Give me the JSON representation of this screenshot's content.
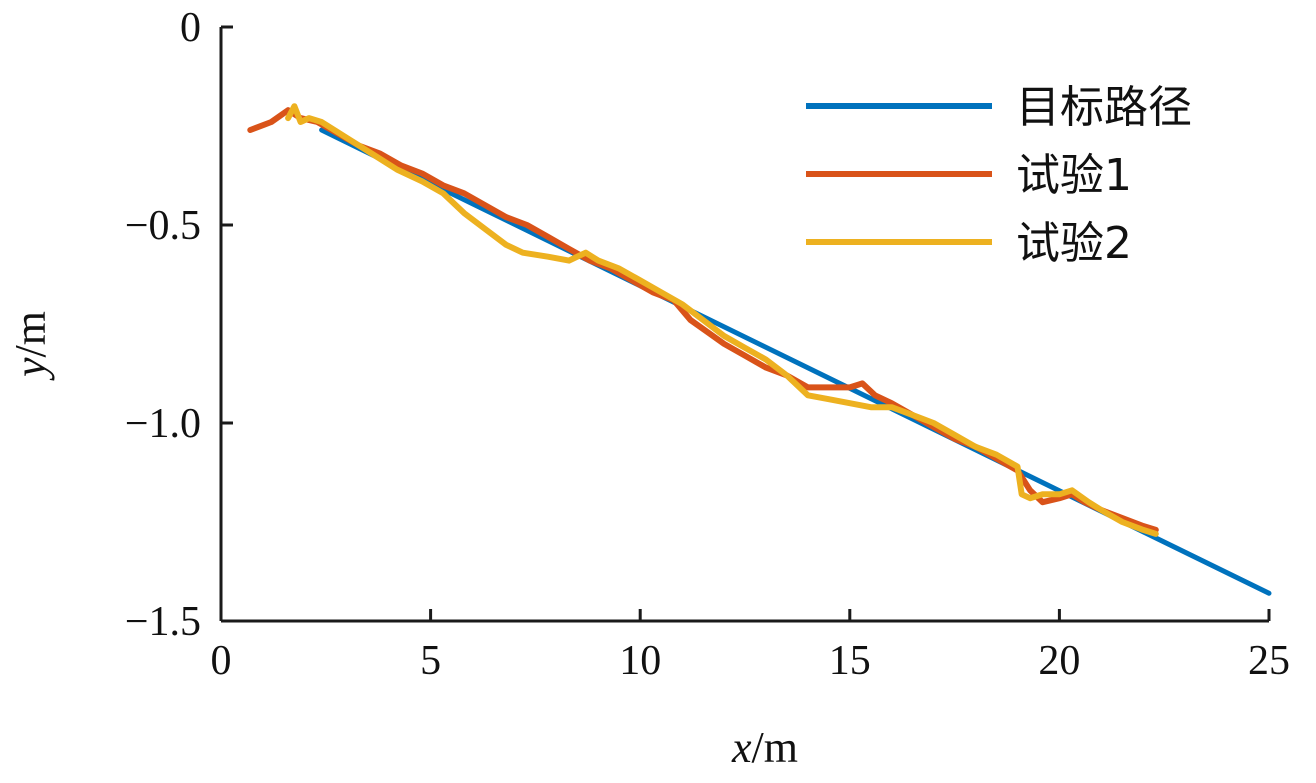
{
  "chart_data": {
    "type": "line",
    "xlabel_var": "x",
    "xlabel_unit": "/m",
    "ylabel_var": "y",
    "ylabel_unit": "/m",
    "xlim": [
      0,
      25
    ],
    "ylim": [
      -1.5,
      0
    ],
    "x_ticks": [
      0,
      5,
      10,
      15,
      20,
      25
    ],
    "x_tick_labels": [
      "0",
      "5",
      "10",
      "15",
      "20",
      "25"
    ],
    "y_ticks": [
      0,
      -0.5,
      -1.0,
      -1.5
    ],
    "y_tick_labels": [
      "0",
      "−0.5",
      "−1.0",
      "−1.5"
    ],
    "grid": false,
    "legend_position": "top-right",
    "series": [
      {
        "name": "目标路径",
        "color": "#0072BD",
        "x": [
          2.4,
          25.0
        ],
        "y": [
          -0.26,
          -1.43
        ]
      },
      {
        "name": "试验1",
        "color": "#D95319",
        "x": [
          0.7,
          1.2,
          1.6,
          1.9,
          2.3,
          2.8,
          3.3,
          3.8,
          4.3,
          4.8,
          5.3,
          5.8,
          6.3,
          6.8,
          7.3,
          7.8,
          8.3,
          8.8,
          9.3,
          9.8,
          10.3,
          10.8,
          11.2,
          11.6,
          12.0,
          12.5,
          13.0,
          13.5,
          14.0,
          14.5,
          15.0,
          15.3,
          15.6,
          16.0,
          16.5,
          17.0,
          17.5,
          18.0,
          18.5,
          19.0,
          19.3,
          19.6,
          20.0,
          20.3,
          20.6,
          21.0,
          21.5,
          22.0,
          22.3
        ],
        "y": [
          -0.26,
          -0.24,
          -0.21,
          -0.23,
          -0.24,
          -0.27,
          -0.3,
          -0.32,
          -0.35,
          -0.37,
          -0.4,
          -0.42,
          -0.45,
          -0.48,
          -0.5,
          -0.53,
          -0.56,
          -0.59,
          -0.61,
          -0.64,
          -0.67,
          -0.69,
          -0.74,
          -0.77,
          -0.8,
          -0.83,
          -0.86,
          -0.88,
          -0.91,
          -0.91,
          -0.91,
          -0.9,
          -0.93,
          -0.95,
          -0.98,
          -1.01,
          -1.04,
          -1.06,
          -1.09,
          -1.12,
          -1.17,
          -1.2,
          -1.19,
          -1.18,
          -1.2,
          -1.22,
          -1.24,
          -1.26,
          -1.27
        ]
      },
      {
        "name": "试验2",
        "color": "#EDB120",
        "x": [
          1.6,
          1.75,
          1.9,
          2.1,
          2.4,
          3.0,
          3.6,
          4.2,
          4.8,
          5.3,
          5.8,
          6.3,
          6.8,
          7.2,
          7.8,
          8.3,
          8.7,
          9.0,
          9.5,
          10.0,
          10.5,
          11.0,
          11.5,
          12.0,
          12.5,
          13.0,
          13.5,
          14.0,
          14.5,
          15.0,
          15.5,
          16.0,
          16.5,
          17.0,
          17.5,
          18.0,
          18.5,
          19.0,
          19.1,
          19.3,
          19.6,
          20.0,
          20.3,
          20.7,
          21.0,
          21.5,
          22.0,
          22.3
        ],
        "y": [
          -0.23,
          -0.2,
          -0.24,
          -0.23,
          -0.24,
          -0.28,
          -0.32,
          -0.36,
          -0.39,
          -0.42,
          -0.47,
          -0.51,
          -0.55,
          -0.57,
          -0.58,
          -0.59,
          -0.57,
          -0.59,
          -0.61,
          -0.64,
          -0.67,
          -0.7,
          -0.74,
          -0.78,
          -0.81,
          -0.84,
          -0.88,
          -0.93,
          -0.94,
          -0.95,
          -0.96,
          -0.96,
          -0.98,
          -1.0,
          -1.03,
          -1.06,
          -1.08,
          -1.11,
          -1.18,
          -1.19,
          -1.18,
          -1.18,
          -1.17,
          -1.2,
          -1.22,
          -1.25,
          -1.27,
          -1.28
        ]
      }
    ]
  }
}
